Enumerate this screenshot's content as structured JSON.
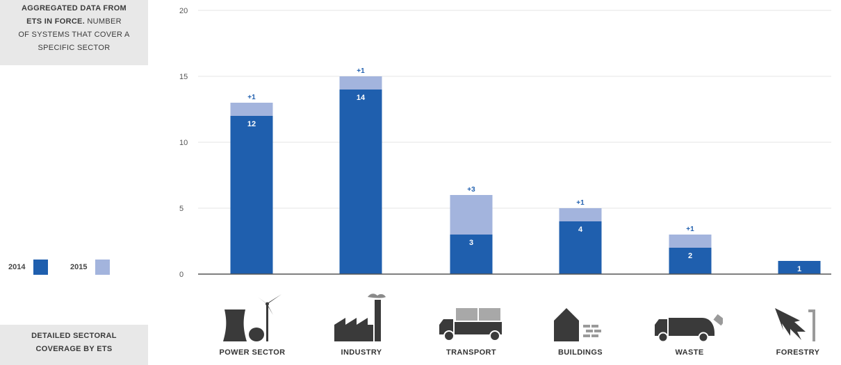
{
  "info_box": {
    "line1": "AGGREGATED DATA FROM",
    "line2_bold": "ETS IN FORCE.",
    "line2_rest": " NUMBER",
    "line3": "OF SYSTEMS THAT COVER A",
    "line4": "SPECIFIC SECTOR"
  },
  "detail_box": {
    "line1": "DETAILED SECTORAL",
    "line2": "COVERAGE BY ETS"
  },
  "colors": {
    "series_2014": "#1f5fae",
    "series_2015": "#a3b4dd",
    "icon": "#3a3a3a"
  },
  "chart_data": {
    "type": "bar",
    "stacked": true,
    "categories": [
      "POWER SECTOR",
      "INDUSTRY",
      "TRANSPORT",
      "BUILDINGS",
      "WASTE",
      "FORESTRY"
    ],
    "category_icons": [
      "power-plant-icon",
      "factory-icon",
      "truck-icon",
      "house-icon",
      "garbage-truck-icon",
      "tree-icon"
    ],
    "series": [
      {
        "name": "2014",
        "values": [
          12,
          14,
          3,
          4,
          2,
          1
        ],
        "labels": [
          "12",
          "14",
          "3",
          "4",
          "2",
          "1"
        ]
      },
      {
        "name": "2015",
        "values": [
          1,
          1,
          3,
          1,
          1,
          0
        ],
        "labels": [
          "+1",
          "+1",
          "+3",
          "+1",
          "+1",
          ""
        ]
      }
    ],
    "yticks": [
      "0",
      "5",
      "10",
      "15",
      "20"
    ],
    "ylim": [
      0,
      20
    ],
    "grid": true,
    "legend_position": "left"
  }
}
